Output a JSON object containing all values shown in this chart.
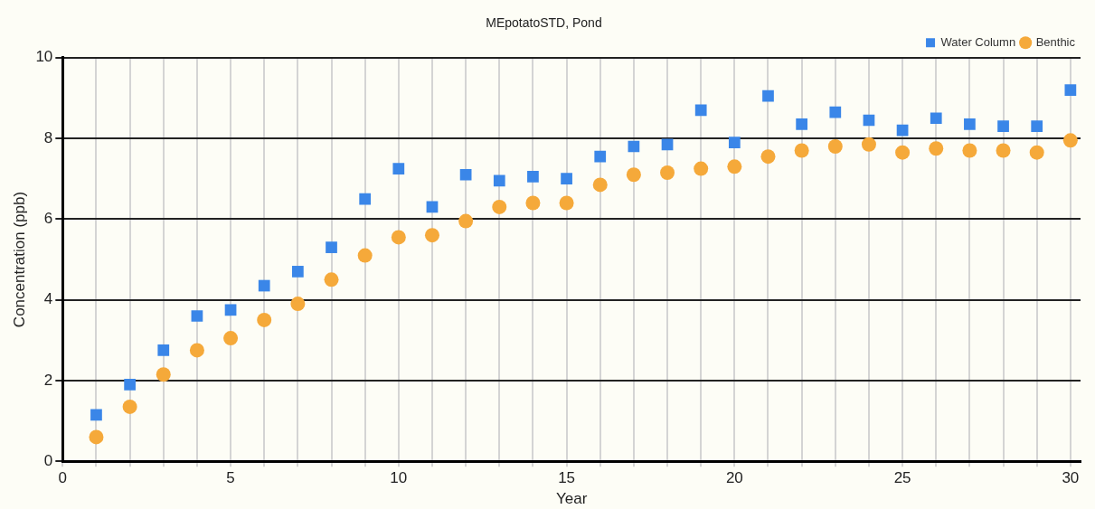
{
  "chart_data": {
    "type": "scatter",
    "title": "MEpotatoSTD, Pond",
    "xlabel": "Year",
    "ylabel": "Concentration (ppb)",
    "x": [
      1,
      2,
      3,
      4,
      5,
      6,
      7,
      8,
      9,
      10,
      11,
      12,
      13,
      14,
      15,
      16,
      17,
      18,
      19,
      20,
      21,
      22,
      23,
      24,
      25,
      26,
      27,
      28,
      29,
      30
    ],
    "series": [
      {
        "name": "Water Column",
        "color": "#3a86e8",
        "marker": "square",
        "values": [
          1.15,
          1.9,
          2.75,
          3.6,
          3.75,
          4.35,
          4.7,
          5.3,
          6.5,
          7.25,
          6.3,
          7.1,
          6.95,
          7.05,
          7.0,
          7.55,
          7.8,
          7.85,
          8.7,
          7.9,
          9.05,
          8.35,
          8.65,
          8.45,
          8.2,
          8.5,
          8.35,
          8.3,
          8.3,
          9.2
        ]
      },
      {
        "name": "Benthic",
        "color": "#f5a93a",
        "marker": "circle",
        "values": [
          0.6,
          1.35,
          2.15,
          2.75,
          3.05,
          3.5,
          3.9,
          4.5,
          5.1,
          5.55,
          5.6,
          5.95,
          6.3,
          6.4,
          6.4,
          6.85,
          7.1,
          7.15,
          7.25,
          7.3,
          7.55,
          7.7,
          7.8,
          7.85,
          7.65,
          7.75,
          7.7,
          7.7,
          7.65,
          7.95
        ]
      }
    ],
    "xlim": [
      0,
      30.3
    ],
    "xticks": [
      0,
      {
        "value": 1,
        "label": null
      },
      {
        "value": 2,
        "label": null
      },
      {
        "value": 3,
        "label": null
      },
      {
        "value": 4,
        "label": null
      },
      5,
      {
        "value": 6,
        "label": null
      },
      {
        "value": 7,
        "label": null
      },
      {
        "value": 8,
        "label": null
      },
      {
        "value": 9,
        "label": null
      },
      10,
      {
        "value": 11,
        "label": null
      },
      {
        "value": 12,
        "label": null
      },
      {
        "value": 13,
        "label": null
      },
      {
        "value": 14,
        "label": null
      },
      15,
      {
        "value": 16,
        "label": null
      },
      {
        "value": 17,
        "label": null
      },
      {
        "value": 18,
        "label": null
      },
      {
        "value": 19,
        "label": null
      },
      20,
      {
        "value": 21,
        "label": null
      },
      {
        "value": 22,
        "label": null
      },
      {
        "value": 23,
        "label": null
      },
      {
        "value": 24,
        "label": null
      },
      25,
      {
        "value": 26,
        "label": null
      },
      {
        "value": 27,
        "label": null
      },
      {
        "value": 28,
        "label": null
      },
      {
        "value": 29,
        "label": null
      },
      30
    ],
    "ylim": [
      0,
      10
    ],
    "yticks": [
      0,
      2,
      4,
      6,
      8,
      10
    ],
    "grid": true,
    "legend": "top right"
  }
}
